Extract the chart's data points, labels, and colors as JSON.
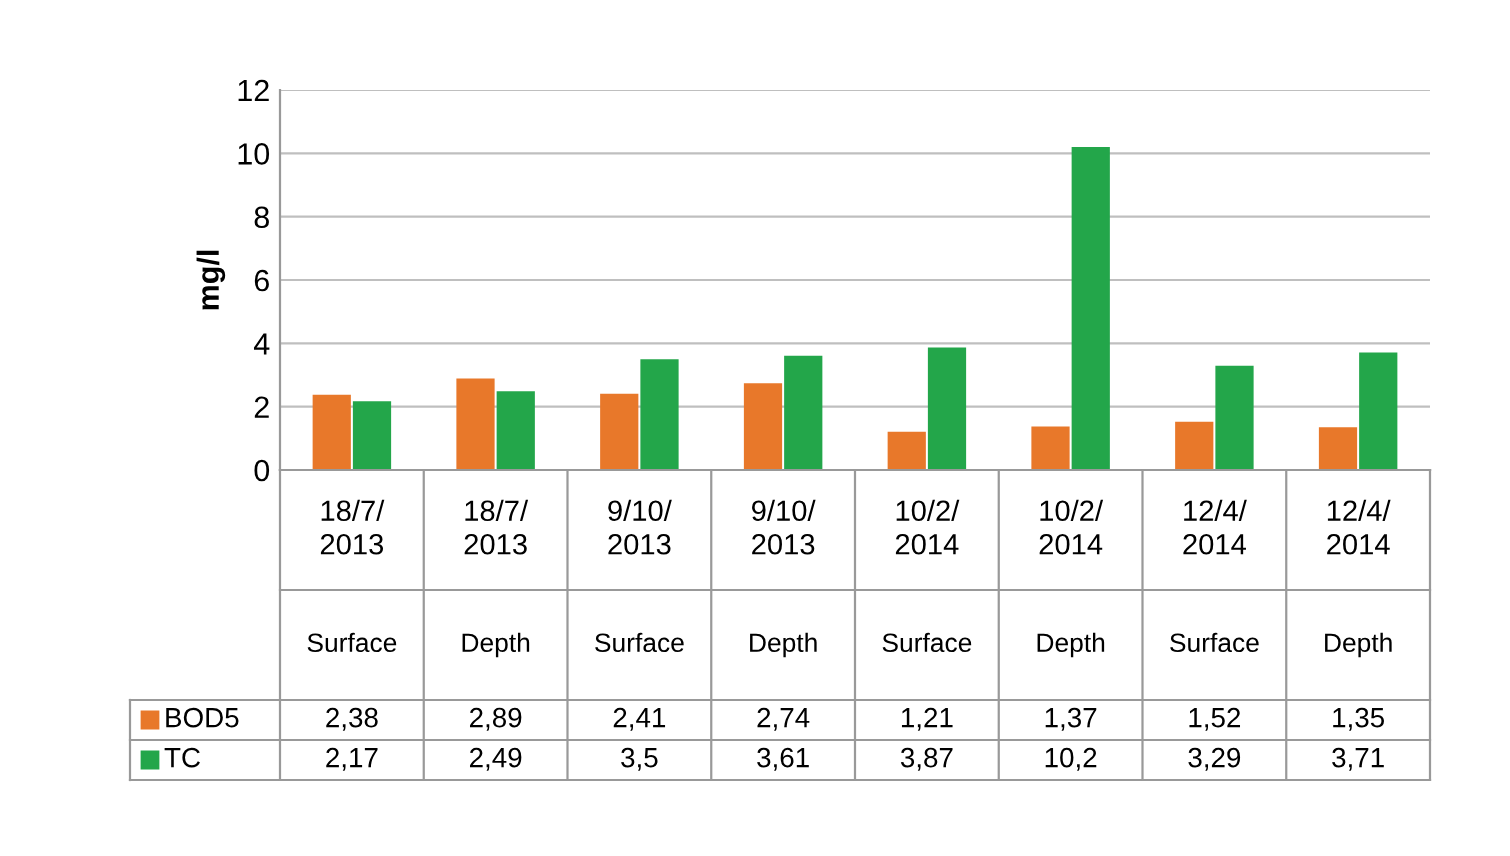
{
  "chart_data": {
    "type": "bar",
    "ylabel": "mg/l",
    "categories": [
      "18/7/2013 Surface",
      "18/7/2013 Depth",
      "9/10/2013 Surface",
      "9/10/2013 Depth",
      "10/2/2014 Surface",
      "10/2/2014 Depth",
      "12/4/2014 Surface",
      "12/4/2014 Depth"
    ],
    "series": [
      {
        "name": "BOD5",
        "color": "#e8782a",
        "values": [
          2.38,
          2.89,
          2.41,
          2.74,
          1.21,
          1.37,
          1.52,
          1.35
        ],
        "value_labels": [
          "2,38",
          "2,89",
          "2,41",
          "2,74",
          "1,21",
          "1,37",
          "1,52",
          "1,35"
        ]
      },
      {
        "name": "TC",
        "color": "#23a64a",
        "values": [
          2.17,
          2.49,
          3.5,
          3.61,
          3.87,
          10.2,
          3.29,
          3.71
        ],
        "value_labels": [
          "2,17",
          "2,49",
          "3,5",
          "3,61",
          "3,87",
          "10,2",
          "3,29",
          "3,71"
        ]
      }
    ],
    "ylim": [
      0,
      12
    ],
    "yticks": [
      0,
      2,
      4,
      6,
      8,
      10,
      12
    ],
    "grid": "y",
    "legend": "bottom left"
  }
}
